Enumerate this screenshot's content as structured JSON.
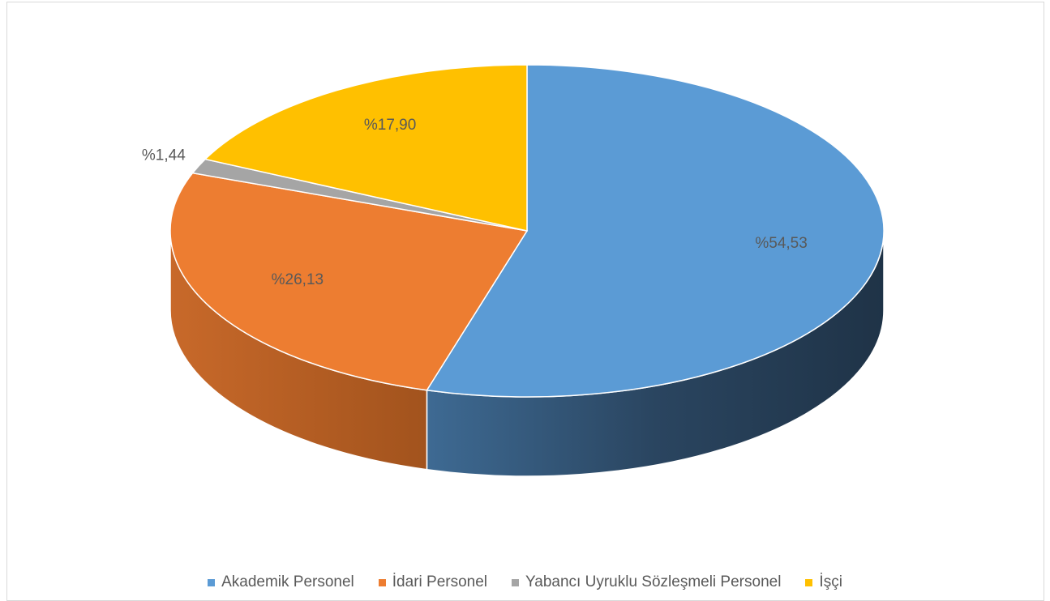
{
  "chart_data": {
    "type": "pie",
    "style": "3d",
    "categories": [
      "Akademik Personel",
      "İdari Personel",
      "Yabancı Uyruklu Sözleşmeli Personel",
      "İşçi"
    ],
    "values": [
      54.53,
      26.13,
      1.44,
      17.9
    ],
    "data_labels": [
      "%54,53",
      "%26,13",
      "%1,44",
      "%17,90"
    ],
    "colors": [
      "#5b9bd5",
      "#ed7d31",
      "#a5a5a5",
      "#ffc000"
    ],
    "side_colors": [
      "#2f4f6f",
      "#b35e22",
      "#7d7d7d",
      "#bf9000"
    ],
    "legend_position": "bottom"
  }
}
